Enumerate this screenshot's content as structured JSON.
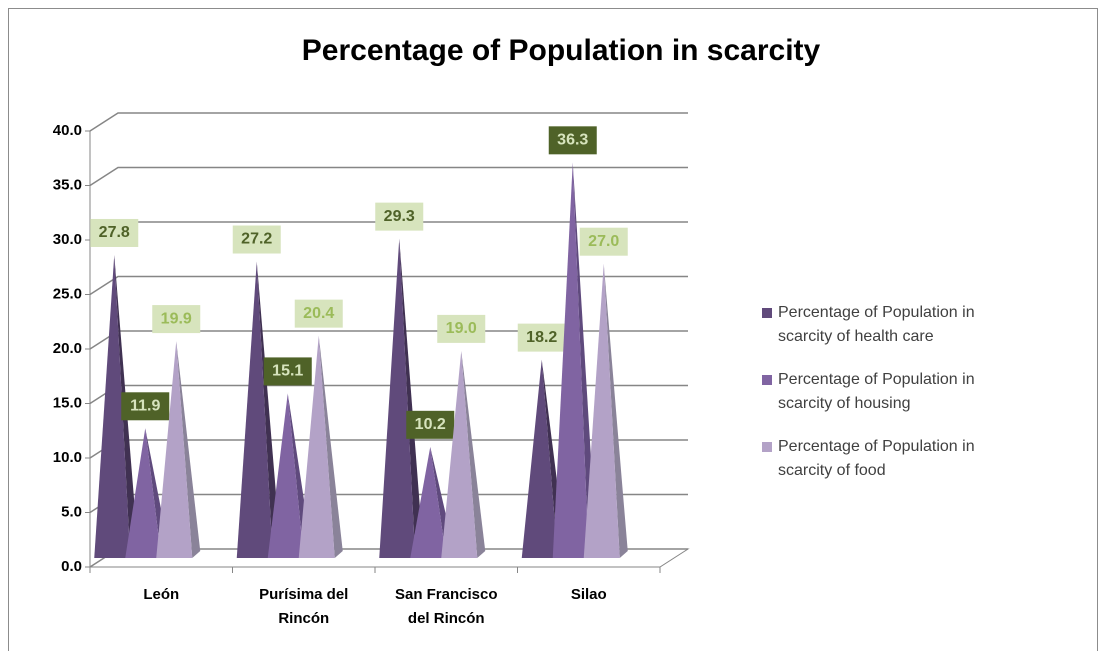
{
  "chart_data": {
    "type": "pyramid3d",
    "title": "Percentage of Population in scarcity",
    "categories": [
      "León",
      "Purísima del Rincón",
      "San Francisco del Rincón",
      "Silao"
    ],
    "series": [
      {
        "name": "Percentage of Population in scarcity of health care",
        "color": "#604a7b",
        "values": [
          27.8,
          27.2,
          29.3,
          18.2
        ],
        "value_labels": [
          "27.8",
          "27.2",
          "29.3",
          "18.2"
        ]
      },
      {
        "name": "Percentage of Population in scarcity of housing",
        "color": "#8064a2",
        "values": [
          11.9,
          15.1,
          10.2,
          36.3
        ],
        "value_labels": [
          "11.9",
          "15.1",
          "10.2",
          "36.3"
        ]
      },
      {
        "name": "Percentage of Population in scarcity of food",
        "color": "#b3a2c7",
        "values": [
          19.9,
          20.4,
          19.0,
          27.0
        ],
        "value_labels": [
          "19.9",
          "20.4",
          "19.0",
          "27.0"
        ]
      }
    ],
    "ylim": [
      0,
      40
    ],
    "yticks": [
      {
        "value": 0,
        "label": "0.0"
      },
      {
        "value": 5,
        "label": "5.0"
      },
      {
        "value": 10,
        "label": "10.0"
      },
      {
        "value": 15,
        "label": "15.0"
      },
      {
        "value": 20,
        "label": "20.0"
      },
      {
        "value": 25,
        "label": "25.0"
      },
      {
        "value": 30,
        "label": "30.0"
      },
      {
        "value": 35,
        "label": "35.0"
      },
      {
        "value": 40,
        "label": "40.0"
      }
    ],
    "grid": true,
    "legend": "right"
  }
}
